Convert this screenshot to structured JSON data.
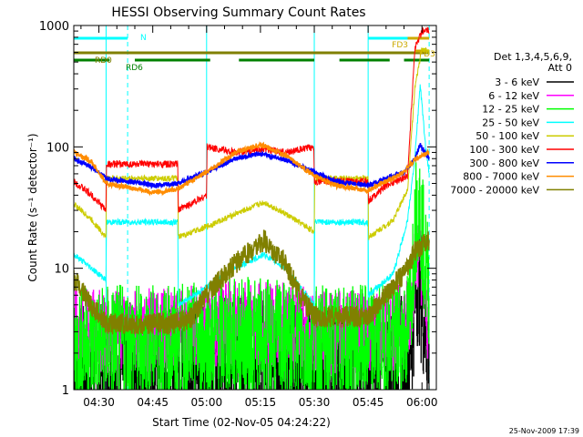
{
  "chart_data": {
    "type": "line",
    "title": "HESSI Observing Summary Count Rates",
    "xlabel": "Start Time (02-Nov-05 04:24:22)",
    "ylabel": "Count Rate (s⁻¹ detector⁻¹)",
    "yscale": "log",
    "ylim": [
      1,
      1000
    ],
    "xlim_minutes": [
      -1,
      100
    ],
    "x_ticks": [
      {
        "label": "04:30",
        "minute": 6
      },
      {
        "label": "04:45",
        "minute": 21
      },
      {
        "label": "05:00",
        "minute": 36
      },
      {
        "label": "05:15",
        "minute": 51
      },
      {
        "label": "05:30",
        "minute": 66
      },
      {
        "label": "05:45",
        "minute": 81
      },
      {
        "label": "06:00",
        "minute": 96
      }
    ],
    "y_ticks": [
      {
        "label": "1",
        "value": 1
      },
      {
        "label": "10",
        "value": 10
      },
      {
        "label": "100",
        "value": 100
      },
      {
        "label": "1000",
        "value": 1000
      }
    ],
    "legend_header": [
      "Det 1,3,4,5,6,9,",
      "Att 0"
    ],
    "legend_placement": "right",
    "footer_date": "25-Nov-2009 17:39",
    "series": [
      {
        "name": "3 - 6 keV",
        "color": "#000000",
        "x": [
          -1,
          15,
          28,
          38,
          47,
          57,
          66,
          81,
          88,
          92,
          93,
          94,
          95,
          96,
          97,
          98
        ],
        "y": [
          1.4,
          1.5,
          1.4,
          1.6,
          1.7,
          1.6,
          1.4,
          1.4,
          1.6,
          1.8,
          2.5,
          6,
          9,
          5,
          3,
          2
        ]
      },
      {
        "name": "6 - 12 keV",
        "color": "#ff00ff",
        "x": [
          -1,
          15,
          28,
          38,
          47,
          57,
          66,
          81,
          88,
          92,
          93,
          94,
          95,
          96,
          97,
          98
        ],
        "y": [
          3,
          3,
          3.1,
          3.5,
          3.5,
          3.4,
          3,
          3,
          3.2,
          3.8,
          5,
          11,
          16,
          10,
          5,
          3
        ]
      },
      {
        "name": "12 - 25 keV",
        "color": "#00ff00",
        "x": [
          -1,
          15,
          28,
          38,
          47,
          57,
          66,
          81,
          88,
          92,
          93,
          94,
          95,
          96,
          97,
          98
        ],
        "y": [
          2.3,
          2.4,
          2.3,
          2.6,
          2.7,
          2.5,
          2.3,
          2.3,
          2.5,
          3,
          6,
          22,
          40,
          20,
          10,
          7
        ]
      },
      {
        "name": "25 - 50 keV",
        "color": "#00ffff",
        "x": [
          -1,
          4,
          8,
          8.1,
          28,
          28.1,
          36,
          44,
          52,
          58,
          66,
          66.1,
          81,
          81.1,
          88,
          92,
          94,
          95.5,
          97,
          98
        ],
        "y": [
          13,
          10,
          8,
          24,
          24,
          5,
          7,
          10,
          13,
          10,
          5,
          24,
          24,
          6,
          9,
          25,
          80,
          330,
          100,
          60
        ]
      },
      {
        "name": "50 - 100 keV",
        "color": "#cccc00",
        "x": [
          -1,
          4,
          8,
          8.1,
          28,
          28.1,
          36,
          44,
          52,
          58,
          66,
          66.1,
          81,
          81.1,
          88,
          92,
          94,
          96,
          98
        ],
        "y": [
          34,
          25,
          18,
          55,
          55,
          18,
          22,
          28,
          35,
          28,
          20,
          55,
          55,
          18,
          25,
          45,
          300,
          650,
          600
        ]
      },
      {
        "name": "100 - 300 keV",
        "color": "#ff0000",
        "x": [
          -1,
          4,
          8,
          8.1,
          28,
          28.1,
          36,
          36.1,
          44,
          52,
          58,
          65.9,
          66,
          81,
          81.1,
          86,
          92,
          94,
          96,
          98
        ],
        "y": [
          52,
          40,
          30,
          72,
          72,
          30,
          40,
          100,
          90,
          95,
          90,
          100,
          52,
          52,
          36,
          48,
          58,
          650,
          900,
          900
        ]
      },
      {
        "name": "300 - 800 keV",
        "color": "#0000ff",
        "x": [
          -1,
          4,
          8,
          22,
          28,
          36,
          44,
          51,
          58,
          66,
          72,
          81,
          86,
          91,
          94,
          95.5,
          97,
          98
        ],
        "y": [
          80,
          68,
          55,
          48,
          50,
          62,
          80,
          88,
          78,
          62,
          52,
          48,
          55,
          62,
          80,
          105,
          88,
          80
        ]
      },
      {
        "name": "800 - 7000 keV",
        "color": "#ff8c00",
        "x": [
          -1,
          4,
          8,
          22,
          28,
          36,
          44,
          51,
          58,
          66,
          72,
          81,
          86,
          91,
          94,
          96,
          98
        ],
        "y": [
          92,
          75,
          50,
          42,
          45,
          62,
          90,
          105,
          85,
          58,
          48,
          44,
          52,
          62,
          78,
          85,
          90
        ]
      },
      {
        "name": "7000 - 20000 keV",
        "color": "#808000",
        "x": [
          -1,
          4,
          8,
          15,
          28,
          32,
          36,
          44,
          52,
          58,
          62,
          66,
          81,
          86,
          92,
          94,
          96,
          98
        ],
        "y": [
          8,
          5,
          3.5,
          3.5,
          3.5,
          4,
          6,
          11,
          17,
          11,
          6,
          4,
          4,
          6,
          10,
          14,
          15,
          17
        ]
      }
    ],
    "markers": {
      "N": {
        "label": "N",
        "color": "#00ffff",
        "intervals": [
          [
            -1,
            14
          ],
          [
            81,
            98
          ]
        ]
      },
      "FD3": {
        "label": "FD3",
        "color": "#ccaa00",
        "intervals": [
          [
            92,
            98
          ]
        ]
      },
      "FD3b": {
        "label": "FD3",
        "color": "#ccaa00",
        "intervals": [
          [
            94,
            98
          ]
        ]
      },
      "RD0": {
        "label": "RD0",
        "color": "#808000",
        "intervals": [
          [
            -1,
            98
          ]
        ]
      },
      "RD6": {
        "label": "RD6",
        "color": "#008000",
        "intervals": [
          [
            -1,
            9
          ],
          [
            16,
            37
          ],
          [
            45,
            66
          ],
          [
            73,
            87
          ],
          [
            91,
            98
          ]
        ]
      }
    },
    "vlines_solid": [
      8,
      36,
      66,
      81
    ],
    "vlines_dashed": [
      14,
      98
    ]
  }
}
